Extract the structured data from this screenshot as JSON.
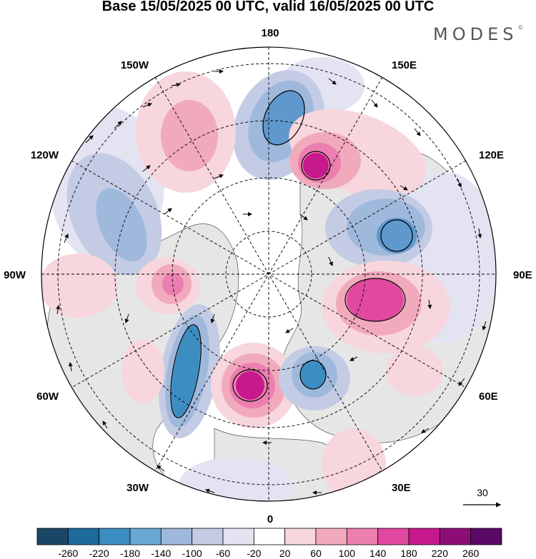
{
  "title": "Base 15/05/2025 00 UTC, valid 16/05/2025 00 UTC",
  "brand": "MODES",
  "brand_mark": "©",
  "longitude_labels": {
    "north": "180",
    "south": "0",
    "west": "90W",
    "east": "90E",
    "nw1": "150W",
    "nw2": "120W",
    "ne1": "150E",
    "ne2": "120E",
    "sw1": "60W",
    "sw2": "30W",
    "se1": "60E",
    "se2": "30E"
  },
  "vector_scale": {
    "value": "30",
    "icon": "reference-arrow-icon"
  },
  "colorbar": {
    "labels": [
      "-260",
      "-220",
      "-180",
      "-140",
      "-100",
      "-60",
      "-20",
      "20",
      "60",
      "100",
      "140",
      "180",
      "220",
      "260"
    ],
    "colors": [
      "#1a4766",
      "#1d6a9c",
      "#3c8ec2",
      "#69a8d2",
      "#9fb9dc",
      "#c4cbe4",
      "#e4e3f2",
      "#ffffff",
      "#f7d6dd",
      "#f1aabc",
      "#ec7fb0",
      "#e1489f",
      "#c6198c",
      "#8d0d77",
      "#5a0a66"
    ]
  },
  "chart_data": {
    "type": "heatmap",
    "projection": "north-polar-stereographic",
    "units_note": "",
    "anomaly_centers": [
      {
        "name": "north-pacific-negative",
        "value": -180,
        "color": "#5f98cd"
      },
      {
        "name": "east-siberia-positive",
        "value": 220,
        "color": "#c6198c"
      },
      {
        "name": "north-america-positive",
        "value": 140,
        "color": "#ec7fb0"
      },
      {
        "name": "canada-negative",
        "value": -100,
        "color": "#9fb9dc"
      },
      {
        "name": "central-siberia-negative",
        "value": -180,
        "color": "#5f98cd"
      },
      {
        "name": "west-siberia-positive",
        "value": 180,
        "color": "#e1489f"
      },
      {
        "name": "north-atlantic-negative",
        "value": -220,
        "color": "#3c8ec2"
      },
      {
        "name": "scandinavia-positive",
        "value": 220,
        "color": "#c6198c"
      },
      {
        "name": "europe-negative",
        "value": -220,
        "color": "#3c8ec2"
      }
    ]
  }
}
